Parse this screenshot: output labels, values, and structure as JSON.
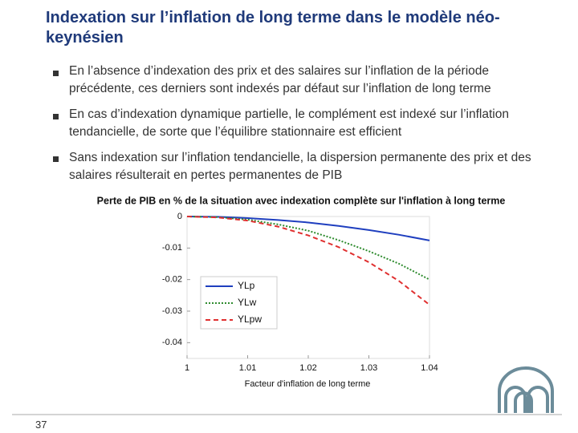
{
  "header": {
    "title": "Indexation sur l’inflation de long terme dans le modèle néo-keynésien"
  },
  "bullets": [
    "En l’absence d’indexation des prix et des salaires sur l’inflation de la période précédente, ces derniers sont indexés par défaut sur l’inflation de long terme",
    "En cas d’indexation dynamique partielle, le complément est indexé sur l’inflation tendancielle, de sorte que l’équilibre stationnaire est efficient",
    "Sans indexation sur l’inflation tendancielle, la dispersion permanente des prix et des salaires résulterait en pertes permanentes de PIB"
  ],
  "page_number": "37",
  "chart_data": {
    "type": "line",
    "title": "Perte de PIB en % de la situation avec indexation complète sur l'inflation à long terme",
    "x_label": "Facteur d'inflation de long terme",
    "x": [
      1,
      1.005,
      1.01,
      1.015,
      1.02,
      1.025,
      1.03,
      1.035,
      1.04
    ],
    "series": [
      {
        "name": "YLp",
        "color": "#1f3fbf",
        "dash": "solid",
        "values": [
          0,
          -0.0001,
          -0.0005,
          -0.0011,
          -0.0019,
          -0.003,
          -0.0043,
          -0.0058,
          -0.0076
        ]
      },
      {
        "name": "YLw",
        "color": "#2e8b2e",
        "dash": "dotted",
        "values": [
          0,
          -0.0002,
          -0.001,
          -0.0025,
          -0.0045,
          -0.0075,
          -0.011,
          -0.015,
          -0.02
        ]
      },
      {
        "name": "YLpw",
        "color": "#e03030",
        "dash": "dashed",
        "values": [
          0,
          -0.0003,
          -0.0013,
          -0.0032,
          -0.006,
          -0.0097,
          -0.0145,
          -0.0205,
          -0.028
        ]
      }
    ],
    "xlim": [
      1,
      1.04
    ],
    "xticks": [
      1,
      1.01,
      1.02,
      1.03,
      1.04
    ],
    "ylim": [
      -0.045,
      0
    ],
    "yticks": [
      0,
      -0.01,
      -0.02,
      -0.03,
      -0.04
    ],
    "legend": "upper-left"
  }
}
